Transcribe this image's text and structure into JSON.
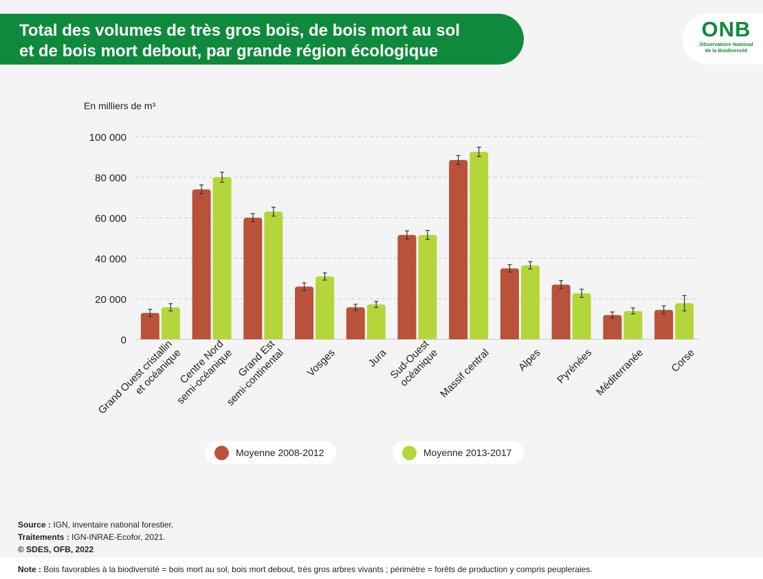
{
  "header": {
    "title_line1": "Total des volumes de très gros bois, de bois mort au sol",
    "title_line2": "et de bois mort debout, par grande région écologique"
  },
  "logo": {
    "main": "ONB",
    "sub_line1": "Observatoire National",
    "sub_line2": "de la Biodiversité"
  },
  "colors": {
    "brand_green": "#0f8a3c",
    "series_2008_2012": "#b9523a",
    "series_2013_2017": "#b5d63a"
  },
  "chart_data": {
    "type": "bar",
    "ylabel": "En milliers de m³",
    "ylim": [
      0,
      100000
    ],
    "yticks": [
      0,
      20000,
      40000,
      60000,
      80000,
      100000
    ],
    "ytick_labels": [
      "0",
      "20 000",
      "40 000",
      "60 000",
      "80 000",
      "100 000"
    ],
    "grid": true,
    "legend_position": "bottom",
    "categories": [
      [
        "Grand Ouest cristallin",
        "et océanique"
      ],
      [
        "Centre Nord",
        "semi-océanique"
      ],
      [
        "Grand Est",
        "semi-continental"
      ],
      [
        "Vosges"
      ],
      [
        "Jura"
      ],
      [
        "Sud-Ouest",
        "océanique"
      ],
      [
        "Massif central"
      ],
      [
        "Alpes"
      ],
      [
        "Pyrénées"
      ],
      [
        "Méditerranée"
      ],
      [
        "Corse"
      ]
    ],
    "series": [
      {
        "name": "Moyenne 2008-2012",
        "color": "#b9523a",
        "values": [
          13000,
          74000,
          60000,
          26000,
          15800,
          51500,
          88500,
          35000,
          27000,
          12000,
          14500
        ],
        "error": [
          1800,
          2200,
          2000,
          1800,
          1500,
          2000,
          2200,
          1800,
          2000,
          1500,
          2000
        ]
      },
      {
        "name": "Moyenne 2013-2017",
        "color": "#b5d63a",
        "values": [
          15800,
          80000,
          63000,
          31000,
          17200,
          51500,
          92500,
          36500,
          22700,
          14000,
          17800
        ],
        "error": [
          1800,
          2500,
          2200,
          1800,
          1500,
          2200,
          2300,
          1800,
          2000,
          1500,
          3800
        ]
      }
    ]
  },
  "footer": {
    "source_label": "Source :",
    "source_text": "IGN, inventaire national forestier.",
    "treatments_label": "Traitements :",
    "treatments_text": "IGN-INRAE-Ecofor, 2021.",
    "copyright": "© SDES, OFB, 2022",
    "note_label": "Note :",
    "note_text": "Bois favorables à la biodiversité = bois mort au sol, bois mort debout, très gros arbres vivants ; périmètre = forêts de production y compris peupleraies."
  }
}
